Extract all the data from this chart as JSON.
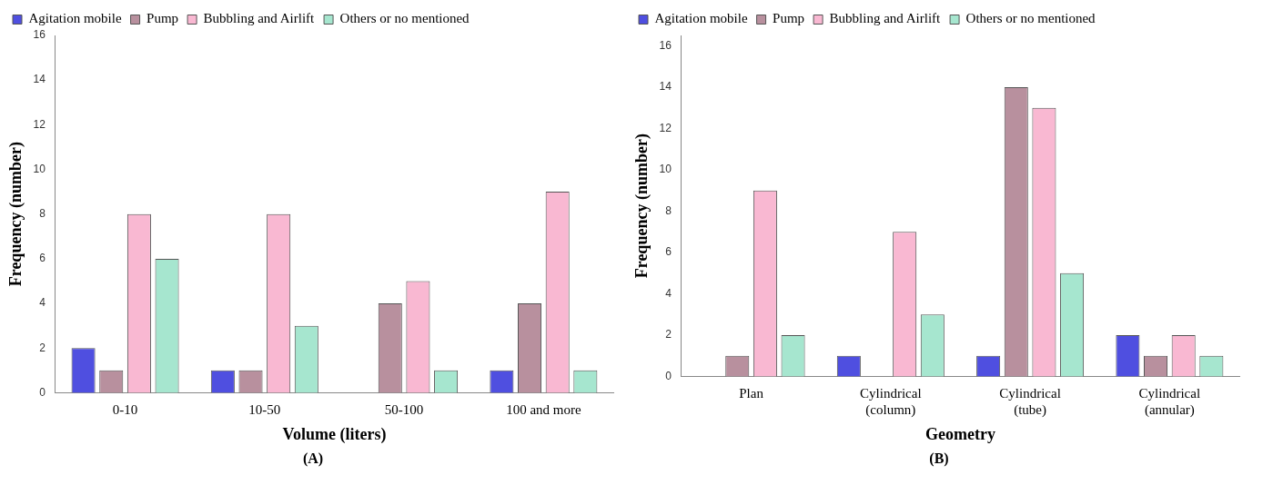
{
  "chart_data": [
    {
      "type": "bar",
      "xlabel": "Volume (liters)",
      "ylabel": "Frequency (number)",
      "annotations": [
        "(A)"
      ],
      "categories": [
        "0-10",
        "10-50",
        "50-100",
        "100 and more"
      ],
      "ylim": [
        0,
        16
      ],
      "yticks": [
        0,
        2,
        4,
        6,
        8,
        10,
        12,
        14,
        16
      ],
      "grid": false,
      "legend": "top",
      "series": [
        {
          "name": "Agitation mobile",
          "color": "#4f4fe0",
          "values": [
            2,
            1,
            null,
            1
          ]
        },
        {
          "name": "Pump",
          "color": "#b8909e",
          "values": [
            1,
            1,
            4,
            4
          ]
        },
        {
          "name": "Bubbling and Airlift",
          "color": "#f9b8d2",
          "values": [
            8,
            8,
            5,
            9
          ]
        },
        {
          "name": "Others or no mentioned",
          "color": "#a6e6cf",
          "values": [
            6,
            3,
            1,
            1
          ]
        }
      ]
    },
    {
      "type": "bar",
      "xlabel": "Geometry",
      "ylabel": "Frequency (number)",
      "annotations": [
        "(B)"
      ],
      "categories": [
        "Plan",
        "Cylindrical (column)",
        "Cylindrical (tube)",
        "Cylindrical (annular)"
      ],
      "ylim": [
        0,
        16.5
      ],
      "yticks": [
        0,
        2,
        4,
        6,
        8,
        10,
        12,
        14,
        16
      ],
      "grid": false,
      "legend": "top",
      "series": [
        {
          "name": "Agitation mobile",
          "color": "#4f4fe0",
          "values": [
            null,
            1,
            1,
            2
          ]
        },
        {
          "name": "Pump",
          "color": "#b8909e",
          "values": [
            1,
            null,
            14,
            1
          ]
        },
        {
          "name": "Bubbling and Airlift",
          "color": "#f9b8d2",
          "values": [
            9,
            7,
            13,
            2
          ]
        },
        {
          "name": "Others or no mentioned",
          "color": "#a6e6cf",
          "values": [
            2,
            3,
            5,
            1
          ]
        }
      ]
    }
  ]
}
